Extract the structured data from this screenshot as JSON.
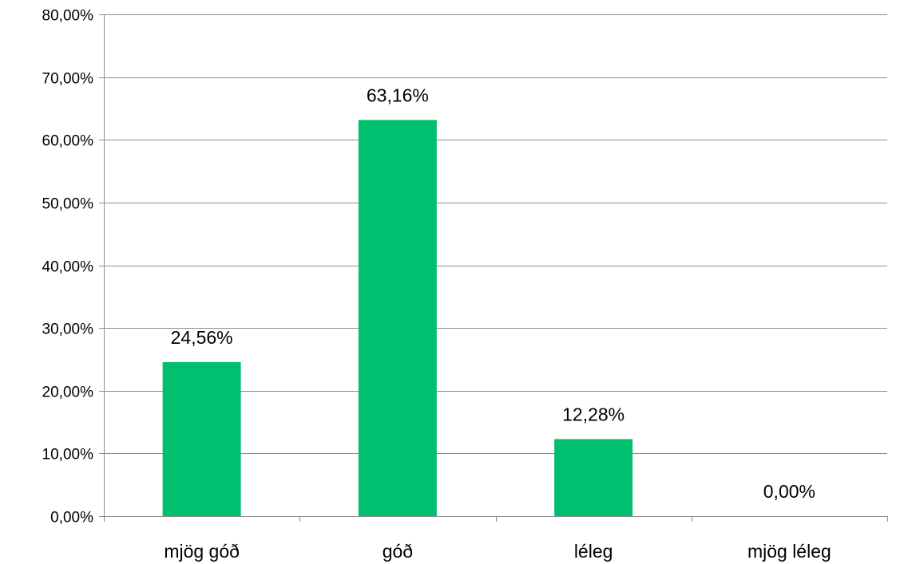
{
  "chart_data": {
    "type": "bar",
    "categories": [
      "mjög góð",
      "góð",
      "léleg",
      "mjög léleg"
    ],
    "values": [
      24.56,
      63.16,
      12.28,
      0.0
    ],
    "data_labels": [
      "24,56%",
      "63,16%",
      "12,28%",
      "0,00%"
    ],
    "y_ticks": [
      0,
      10,
      20,
      30,
      40,
      50,
      60,
      70,
      80
    ],
    "y_tick_labels": [
      "0,00%",
      "10,00%",
      "20,00%",
      "30,00%",
      "40,00%",
      "50,00%",
      "60,00%",
      "70,00%",
      "80,00%"
    ],
    "ylim": [
      0,
      80
    ],
    "grid": true,
    "legend": "none",
    "bar_color": "#00bf6f",
    "title": "",
    "xlabel": "",
    "ylabel": ""
  }
}
